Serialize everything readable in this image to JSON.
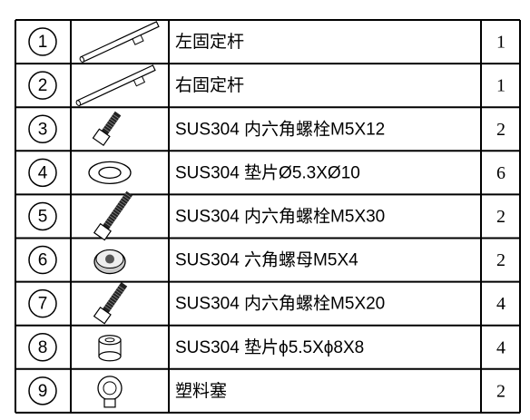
{
  "table": {
    "rows": [
      {
        "number": 1,
        "name": "左固定杆",
        "quantity": 1
      },
      {
        "number": 2,
        "name": "右固定杆",
        "quantity": 1
      },
      {
        "number": 3,
        "name": "SUS304 内六角螺栓M5X12",
        "quantity": 2
      },
      {
        "number": 4,
        "name": "SUS304 垫片Ø5.3XØ10",
        "quantity": 6
      },
      {
        "number": 5,
        "name": "SUS304 内六角螺栓M5X30",
        "quantity": 2
      },
      {
        "number": 6,
        "name": "SUS304 六角螺母M5X4",
        "quantity": 2
      },
      {
        "number": 7,
        "name": "SUS304 内六角螺栓M5X20",
        "quantity": 4
      },
      {
        "number": 8,
        "name": "SUS304 垫片ϕ5.5Xϕ8X8",
        "quantity": 4
      },
      {
        "number": 9,
        "name": "塑料塞",
        "quantity": 2
      }
    ]
  }
}
